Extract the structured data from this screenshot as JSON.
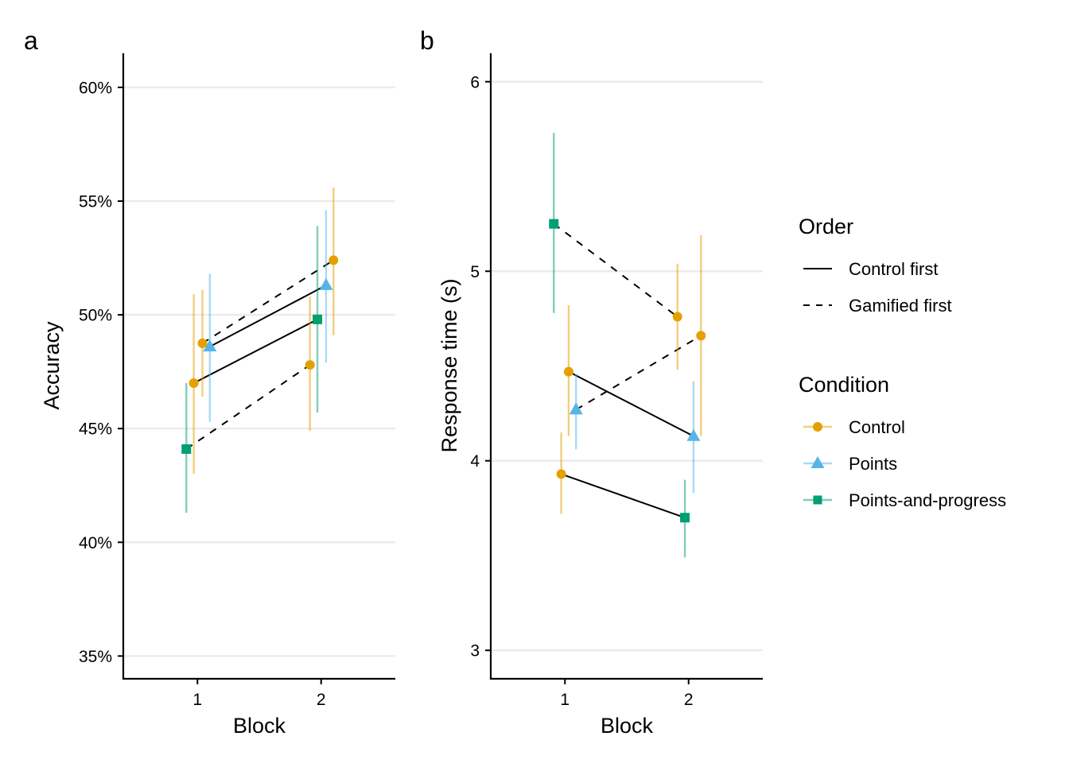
{
  "colors": {
    "Control": "#E69F00",
    "Points": "#56B4E9",
    "Points-and-progress": "#009E73"
  },
  "legend": {
    "order_title": "Order",
    "order_items": [
      {
        "label": "Control first",
        "dash": "solid"
      },
      {
        "label": "Gamified first",
        "dash": "dashed"
      }
    ],
    "condition_title": "Condition",
    "condition_items": [
      {
        "label": "Control",
        "shape": "circle"
      },
      {
        "label": "Points",
        "shape": "triangle"
      },
      {
        "label": "Points-and-progress",
        "shape": "square"
      }
    ]
  },
  "chart_data": [
    {
      "type": "line",
      "panel_label": "a",
      "xlabel": "Block",
      "ylabel": "Accuracy",
      "x_ticks": [
        1,
        2
      ],
      "x_tick_labels": [
        "1",
        "2"
      ],
      "xlim": [
        0.4,
        2.6
      ],
      "ylim": [
        0.34,
        0.615
      ],
      "y_ticks": [
        0.35,
        0.4,
        0.45,
        0.5,
        0.55,
        0.6
      ],
      "y_tick_labels": [
        "35%",
        "40%",
        "45%",
        "50%",
        "55%",
        "60%"
      ],
      "series": [
        {
          "order": "Control first",
          "points": [
            {
              "block": 1,
              "condition": "Points",
              "y": 0.486,
              "lo": 0.453,
              "hi": 0.518
            },
            {
              "block": 2,
              "condition": "Points",
              "y": 0.513,
              "lo": 0.479,
              "hi": 0.546
            }
          ]
        },
        {
          "order": "Control first",
          "points": [
            {
              "block": 1,
              "condition": "Control",
              "y": 0.47,
              "lo": 0.43,
              "hi": 0.509
            },
            {
              "block": 2,
              "condition": "Points-and-progress",
              "y": 0.498,
              "lo": 0.457,
              "hi": 0.539
            }
          ]
        },
        {
          "order": "Gamified first",
          "points": [
            {
              "block": 1,
              "condition": "Control",
              "y": 0.4875,
              "lo": 0.464,
              "hi": 0.511
            },
            {
              "block": 2,
              "condition": "Control",
              "y": 0.524,
              "lo": 0.491,
              "hi": 0.556
            }
          ]
        },
        {
          "order": "Gamified first",
          "points": [
            {
              "block": 1,
              "condition": "Points-and-progress",
              "y": 0.441,
              "lo": 0.413,
              "hi": 0.47
            },
            {
              "block": 2,
              "condition": "Control",
              "y": 0.478,
              "lo": 0.449,
              "hi": 0.508
            }
          ]
        }
      ]
    },
    {
      "type": "line",
      "panel_label": "b",
      "xlabel": "Block",
      "ylabel": "Response time (s)",
      "x_ticks": [
        1,
        2
      ],
      "x_tick_labels": [
        "1",
        "2"
      ],
      "xlim": [
        0.4,
        2.6
      ],
      "ylim": [
        2.85,
        6.15
      ],
      "y_ticks": [
        3,
        4,
        5,
        6
      ],
      "y_tick_labels": [
        "3",
        "4",
        "5",
        "6"
      ],
      "series": [
        {
          "order": "Control first",
          "points": [
            {
              "block": 1,
              "condition": "Control",
              "y": 4.47,
              "lo": 4.13,
              "hi": 4.82
            },
            {
              "block": 2,
              "condition": "Points",
              "y": 4.13,
              "lo": 3.83,
              "hi": 4.42
            }
          ]
        },
        {
          "order": "Control first",
          "points": [
            {
              "block": 1,
              "condition": "Control",
              "y": 3.93,
              "lo": 3.72,
              "hi": 4.15
            },
            {
              "block": 2,
              "condition": "Points-and-progress",
              "y": 3.7,
              "lo": 3.49,
              "hi": 3.9
            }
          ]
        },
        {
          "order": "Gamified first",
          "points": [
            {
              "block": 1,
              "condition": "Points-and-progress",
              "y": 5.25,
              "lo": 4.78,
              "hi": 5.73
            },
            {
              "block": 2,
              "condition": "Control",
              "y": 4.76,
              "lo": 4.48,
              "hi": 5.04
            }
          ]
        },
        {
          "order": "Gamified first",
          "points": [
            {
              "block": 1,
              "condition": "Points",
              "y": 4.27,
              "lo": 4.06,
              "hi": 4.46
            },
            {
              "block": 2,
              "condition": "Control",
              "y": 4.66,
              "lo": 4.13,
              "hi": 5.19
            }
          ]
        }
      ]
    }
  ]
}
